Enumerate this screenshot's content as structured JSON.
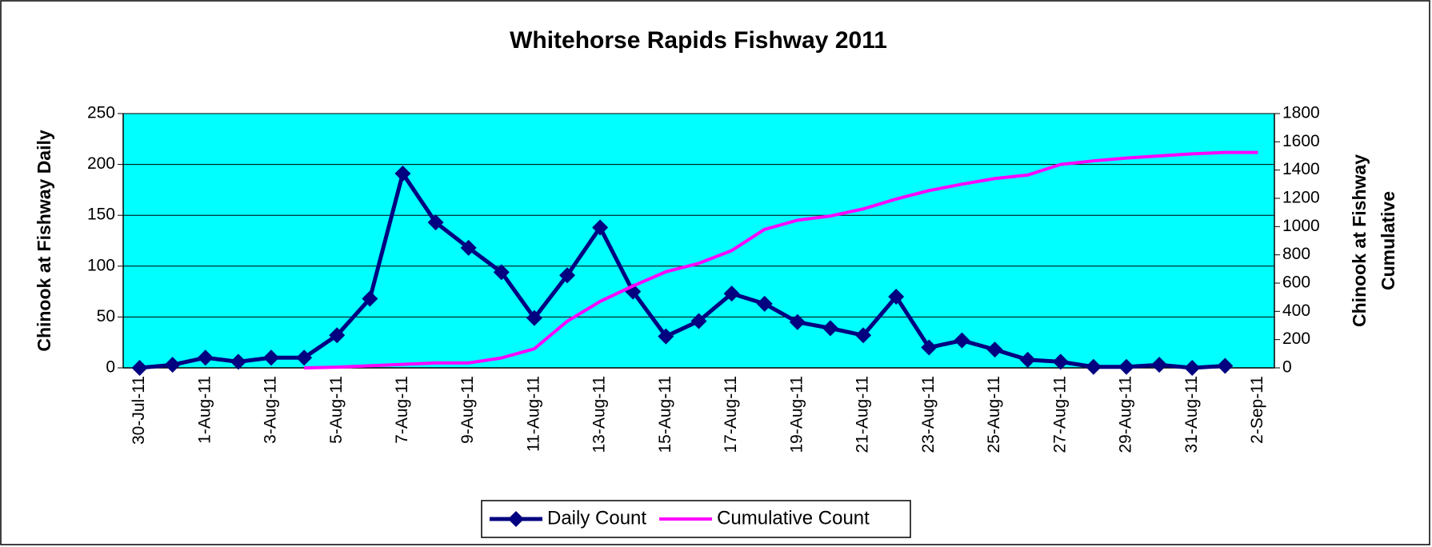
{
  "chart_data": {
    "type": "line",
    "title": "Whitehorse Rapids Fishway 2011",
    "y_label": "Chinook at Fishway Daily",
    "y2_label": [
      "Chinook at Fishway",
      "Cumulative"
    ],
    "categories": [
      "30-Jul-11",
      null,
      "1-Aug-11",
      null,
      "3-Aug-11",
      null,
      "5-Aug-11",
      null,
      "7-Aug-11",
      null,
      "9-Aug-11",
      null,
      "11-Aug-11",
      null,
      "13-Aug-11",
      null,
      "15-Aug-11",
      null,
      "17-Aug-11",
      null,
      "19-Aug-11",
      null,
      "21-Aug-11",
      null,
      "23-Aug-11",
      null,
      "25-Aug-11",
      null,
      "27-Aug-11",
      null,
      "29-Aug-11",
      null,
      "31-Aug-11",
      null,
      "2-Sep-11"
    ],
    "series": [
      {
        "name": "Daily Count",
        "color": "#000080",
        "marker": "diamond",
        "values": [
          0,
          3,
          10,
          6,
          10,
          10,
          32,
          68,
          191,
          143,
          118,
          94,
          49,
          91,
          138,
          75,
          31,
          46,
          73,
          63,
          45,
          39,
          32,
          70,
          20,
          27,
          18,
          8,
          6,
          1,
          1,
          3,
          0,
          2,
          null
        ]
      },
      {
        "name": "Cumulative Count",
        "color": "#FF00FF",
        "axis": "y2",
        "values": [
          null,
          null,
          null,
          null,
          null,
          0,
          5,
          15,
          25,
          35,
          35,
          70,
          135,
          330,
          470,
          580,
          680,
          740,
          830,
          980,
          1045,
          1075,
          1125,
          1195,
          1255,
          1300,
          1340,
          1365,
          1440,
          1465,
          1485,
          1500,
          1515,
          1525,
          1525
        ]
      }
    ],
    "ylim": [
      0,
      250
    ],
    "yticks": [
      0,
      50,
      100,
      150,
      200,
      250
    ],
    "y2lim": [
      0,
      1800
    ],
    "y2ticks": [
      0,
      200,
      400,
      600,
      800,
      1000,
      1200,
      1400,
      1600,
      1800
    ],
    "grid": true,
    "plot_background": "#00FFFF",
    "legend": "bottom"
  }
}
